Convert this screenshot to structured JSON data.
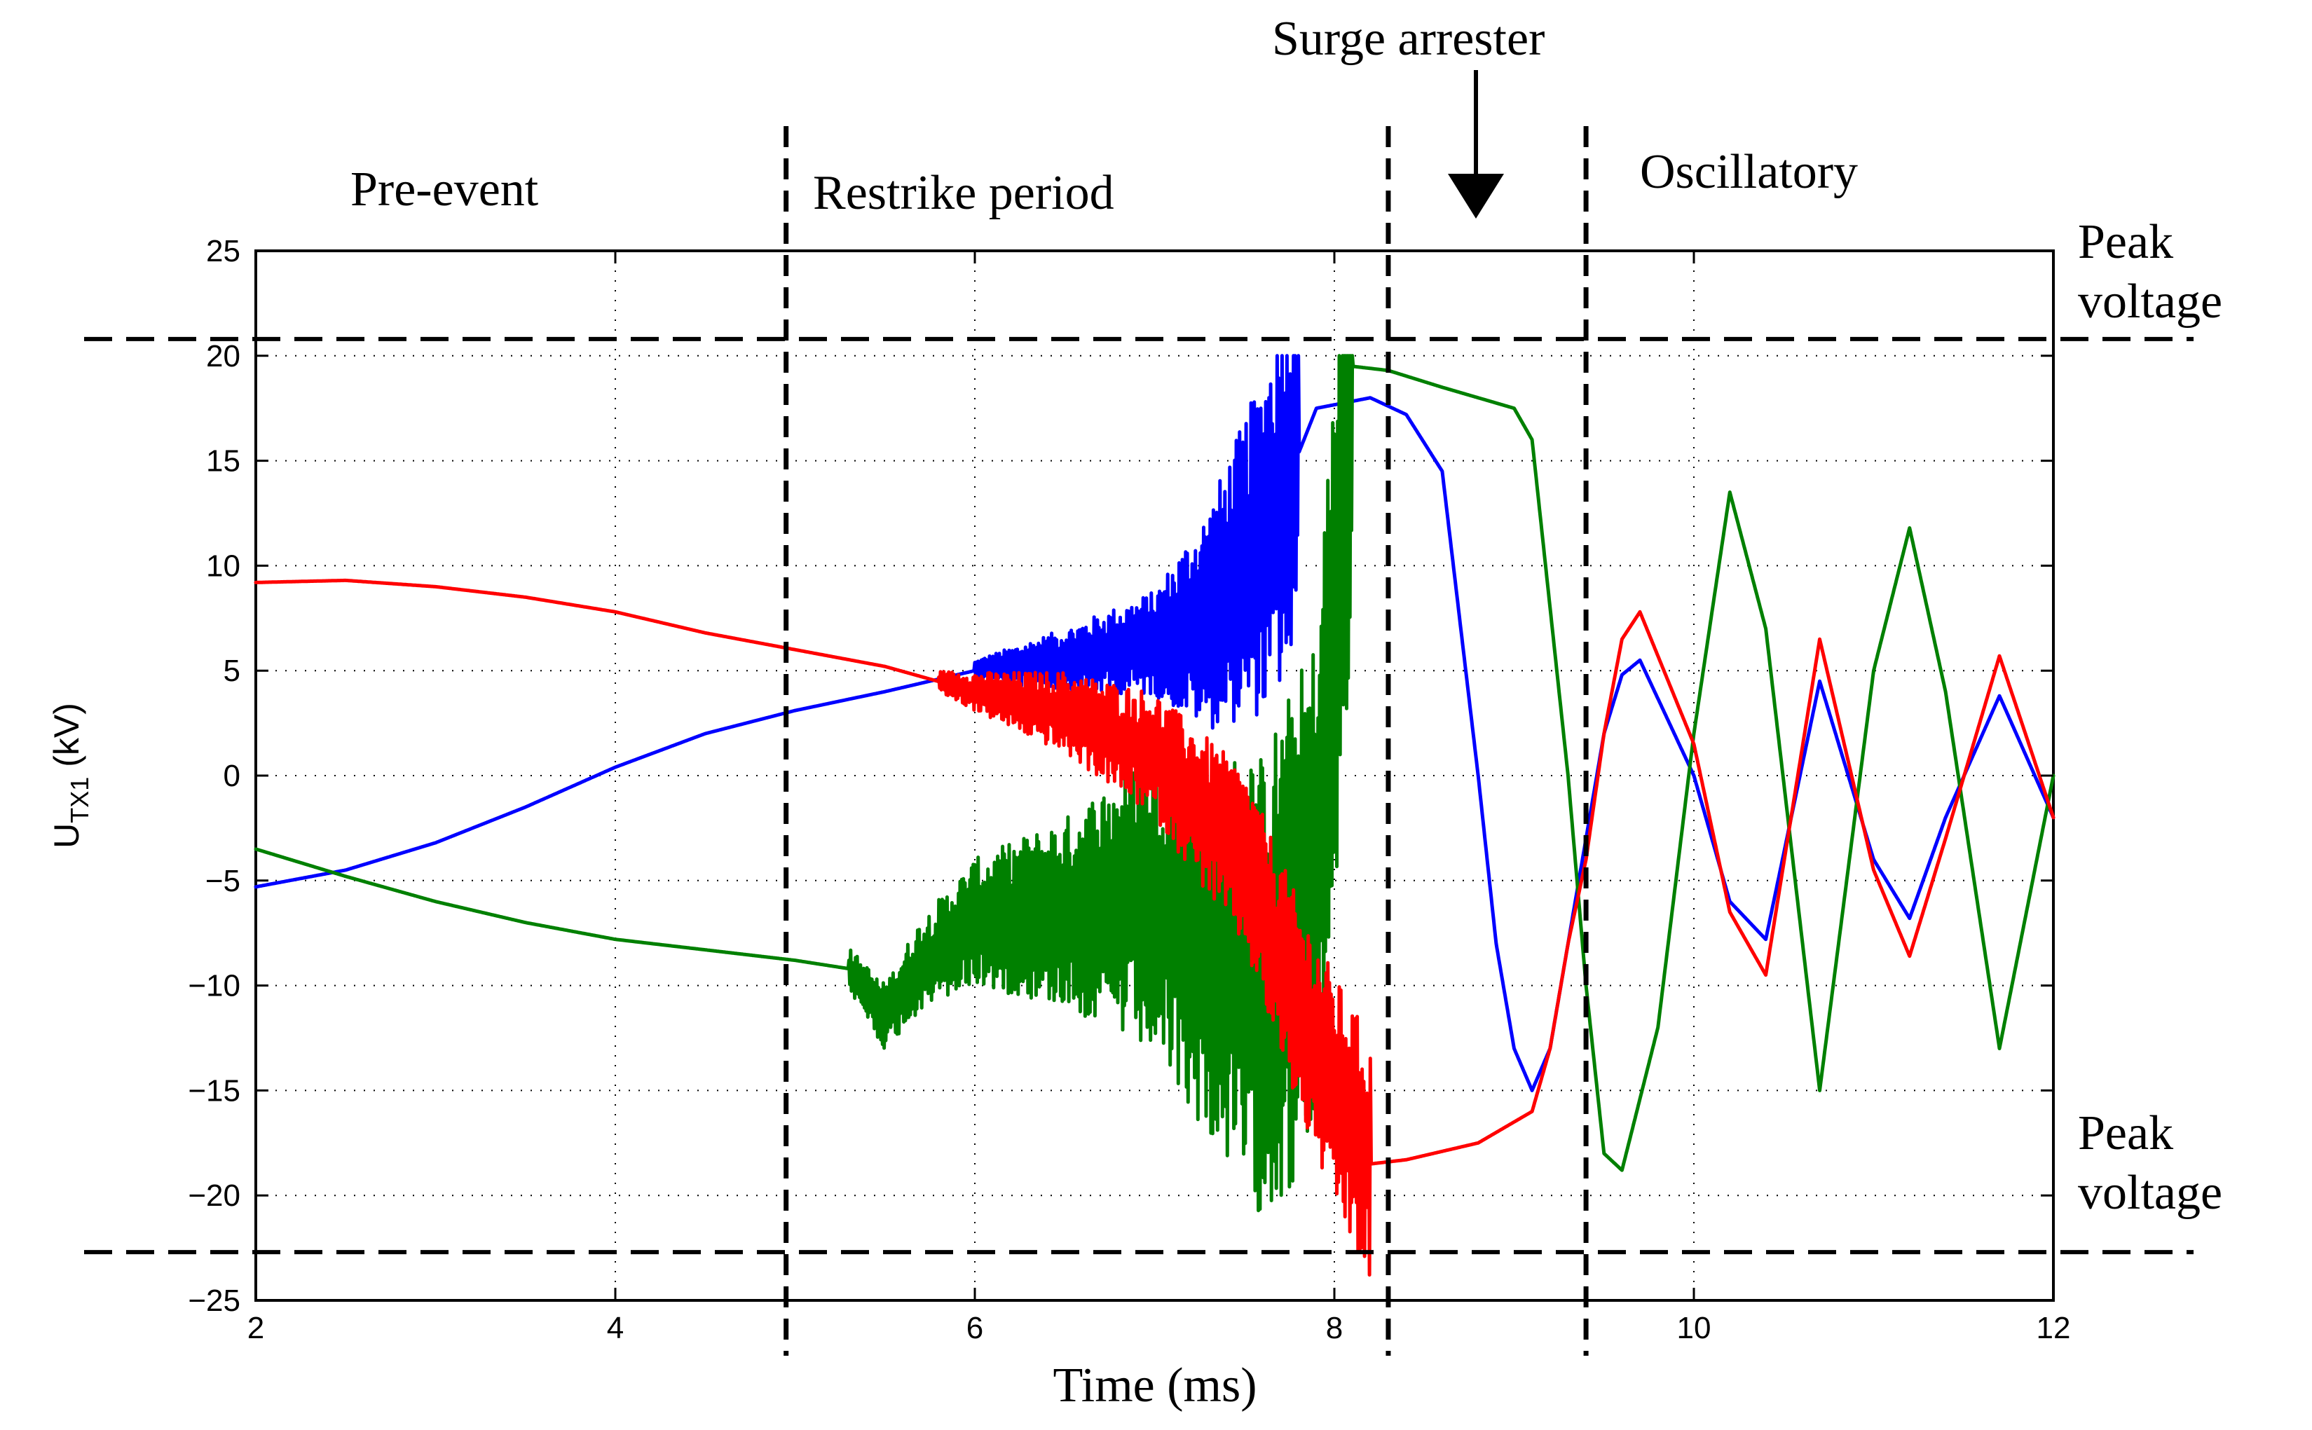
{
  "chart_data": {
    "type": "line",
    "title": "",
    "xlabel": "Time (ms)",
    "ylabel": {
      "main": "U",
      "sub": "TX1",
      "unit": " (kV)"
    },
    "xlim": [
      2,
      12
    ],
    "ylim": [
      -25,
      25
    ],
    "xticks": [
      2,
      4,
      6,
      8,
      10,
      12
    ],
    "yticks": [
      -25,
      -20,
      -15,
      -10,
      -5,
      0,
      5,
      10,
      15,
      20,
      25
    ],
    "ytick_labels": [
      "−25",
      "−20",
      "−15",
      "−10",
      "−5",
      "0",
      "5",
      "10",
      "15",
      "20",
      "25"
    ],
    "grid": true,
    "regions": [
      {
        "label": "Pre-event",
        "x_start": 2,
        "x_end": 4.95
      },
      {
        "label": "Restrike period",
        "x_start": 4.95,
        "x_end": 8.3
      },
      {
        "label": "Oscillatory",
        "x_start": 9.4,
        "x_end": 12
      }
    ],
    "region_boundaries_x": [
      4.95,
      8.3,
      9.4
    ],
    "annotations": [
      {
        "text": "Surge arrester",
        "arrow_x": 8.8
      },
      {
        "text_line1": "Peak",
        "text_line2": "voltage",
        "y": 20.8
      },
      {
        "text_line1": "Peak",
        "text_line2": "voltage",
        "y": -22.7
      }
    ],
    "peak_voltage_levels": [
      20.8,
      -22.7
    ],
    "series": [
      {
        "name": "blue phase",
        "color": "#0000ff",
        "x": [
          2.0,
          2.5,
          3.0,
          3.5,
          4.0,
          4.5,
          5.0,
          5.5,
          6.0,
          6.5,
          7.0,
          7.3,
          7.6,
          7.9,
          8.2,
          8.4,
          8.6,
          8.8,
          8.9,
          9.0,
          9.1,
          9.2,
          9.3,
          9.4,
          9.5,
          9.6,
          9.7,
          10.0,
          10.2,
          10.4,
          10.7,
          11.0,
          11.2,
          11.4,
          11.7,
          12.0
        ],
        "y": [
          -5.3,
          -4.5,
          -3.2,
          -1.5,
          0.4,
          2.0,
          3.1,
          4.0,
          5.0,
          5.5,
          6.3,
          7.5,
          11.0,
          17.5,
          18.0,
          17.2,
          14.5,
          0.0,
          -8.0,
          -13.0,
          -15.0,
          -13.0,
          -8.0,
          -3.0,
          2.0,
          4.8,
          5.5,
          0.0,
          -6.0,
          -7.8,
          4.5,
          -4.0,
          -6.8,
          -2.0,
          3.8,
          -2.0
        ],
        "noise_ranges": [
          {
            "x_start": 6.0,
            "x_end": 7.0,
            "amp_start": 0.5,
            "amp_end": 2.5
          },
          {
            "x_start": 7.0,
            "x_end": 7.8,
            "amp_start": 2.5,
            "amp_end": 10.0
          }
        ]
      },
      {
        "name": "red phase",
        "color": "#ff0000",
        "x": [
          2.0,
          2.5,
          3.0,
          3.5,
          4.0,
          4.5,
          5.0,
          5.5,
          6.0,
          6.5,
          7.0,
          7.5,
          7.8,
          8.0,
          8.2,
          8.4,
          8.8,
          9.1,
          9.2,
          9.3,
          9.4,
          9.5,
          9.6,
          9.7,
          10.0,
          10.2,
          10.4,
          10.7,
          11.0,
          11.2,
          11.4,
          11.7,
          12.0
        ],
        "y": [
          9.2,
          9.3,
          9.0,
          8.5,
          7.8,
          6.8,
          6.0,
          5.2,
          4.0,
          3.0,
          1.0,
          -4.0,
          -11.0,
          -15.0,
          -18.5,
          -18.3,
          -17.5,
          -16.0,
          -13.0,
          -8.0,
          -4.0,
          2.0,
          6.5,
          7.8,
          1.5,
          -6.5,
          -9.5,
          6.5,
          -4.5,
          -8.6,
          -3.0,
          5.7,
          -2.0
        ],
        "noise_ranges": [
          {
            "x_start": 5.8,
            "x_end": 7.0,
            "amp_start": 0.5,
            "amp_end": 3.0
          },
          {
            "x_start": 7.0,
            "x_end": 8.2,
            "amp_start": 3.0,
            "amp_end": 6.0
          }
        ]
      },
      {
        "name": "green phase",
        "color": "#008000",
        "x": [
          2.0,
          2.5,
          3.0,
          3.5,
          4.0,
          4.5,
          5.0,
          5.3,
          5.5,
          5.7,
          6.0,
          6.5,
          7.0,
          7.3,
          7.6,
          7.9,
          8.1,
          8.3,
          8.6,
          9.0,
          9.1,
          9.2,
          9.3,
          9.4,
          9.5,
          9.6,
          9.8,
          10.0,
          10.2,
          10.4,
          10.7,
          11.0,
          11.2,
          11.4,
          11.7,
          12.0
        ],
        "y": [
          -3.5,
          -4.8,
          -6.0,
          -7.0,
          -7.8,
          -8.3,
          -8.8,
          -9.2,
          -11.5,
          -9.0,
          -7.0,
          -6.5,
          -6.0,
          -8.0,
          -10.0,
          -6.0,
          19.5,
          19.3,
          18.5,
          17.5,
          16.0,
          8.0,
          0.0,
          -10.0,
          -18.0,
          -18.8,
          -12.0,
          2.0,
          13.5,
          7.0,
          -15.0,
          5.0,
          11.8,
          4.0,
          -13.0,
          0.0
        ],
        "noise_ranges": [
          {
            "x_start": 5.3,
            "x_end": 6.5,
            "amp_start": 1.0,
            "amp_end": 4.5
          },
          {
            "x_start": 6.5,
            "x_end": 8.1,
            "amp_start": 4.5,
            "amp_end": 14.0
          }
        ]
      }
    ]
  }
}
